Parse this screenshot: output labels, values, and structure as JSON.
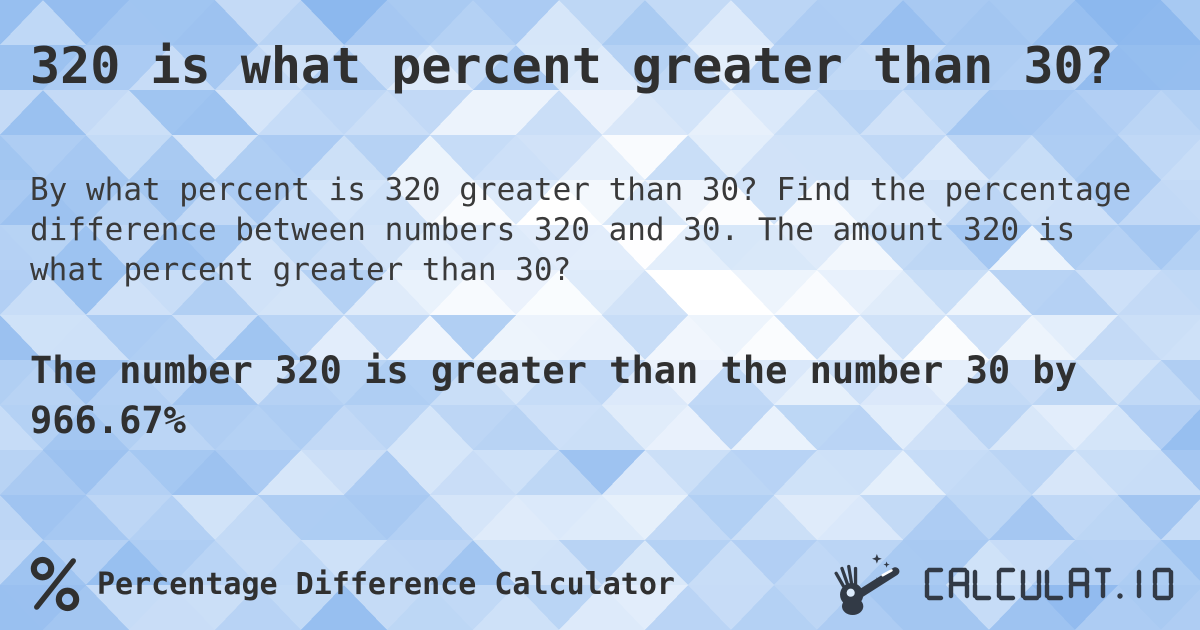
{
  "page": {
    "title": "320 is what percent greater than 30?",
    "description": "By what percent is 320 greater than 30? Find the percentage difference between numbers 320 and 30. The amount 320 is what percent greater than 30?",
    "result": "The number 320 is greater than the number 30 by 966.67%"
  },
  "footer": {
    "brand_label": "Percentage Difference Calculator",
    "brand_icon": "percent-icon",
    "logo_text": "CALCULAT.IO",
    "logo_icon": "magic-wand-hand-icon"
  },
  "colors": {
    "title_text": "#303030",
    "body_text": "#3a3a3a",
    "logo_ink": "#323a46",
    "mosaic_deep_blue": "#8cb8ee",
    "mosaic_mid_blue": "#b4d1f5",
    "mosaic_light_blue": "#cfe2fa",
    "mosaic_white": "#ffffff",
    "wand_hole_fill": "#dcebfc",
    "wand_slot_fill": "#ffffff"
  }
}
